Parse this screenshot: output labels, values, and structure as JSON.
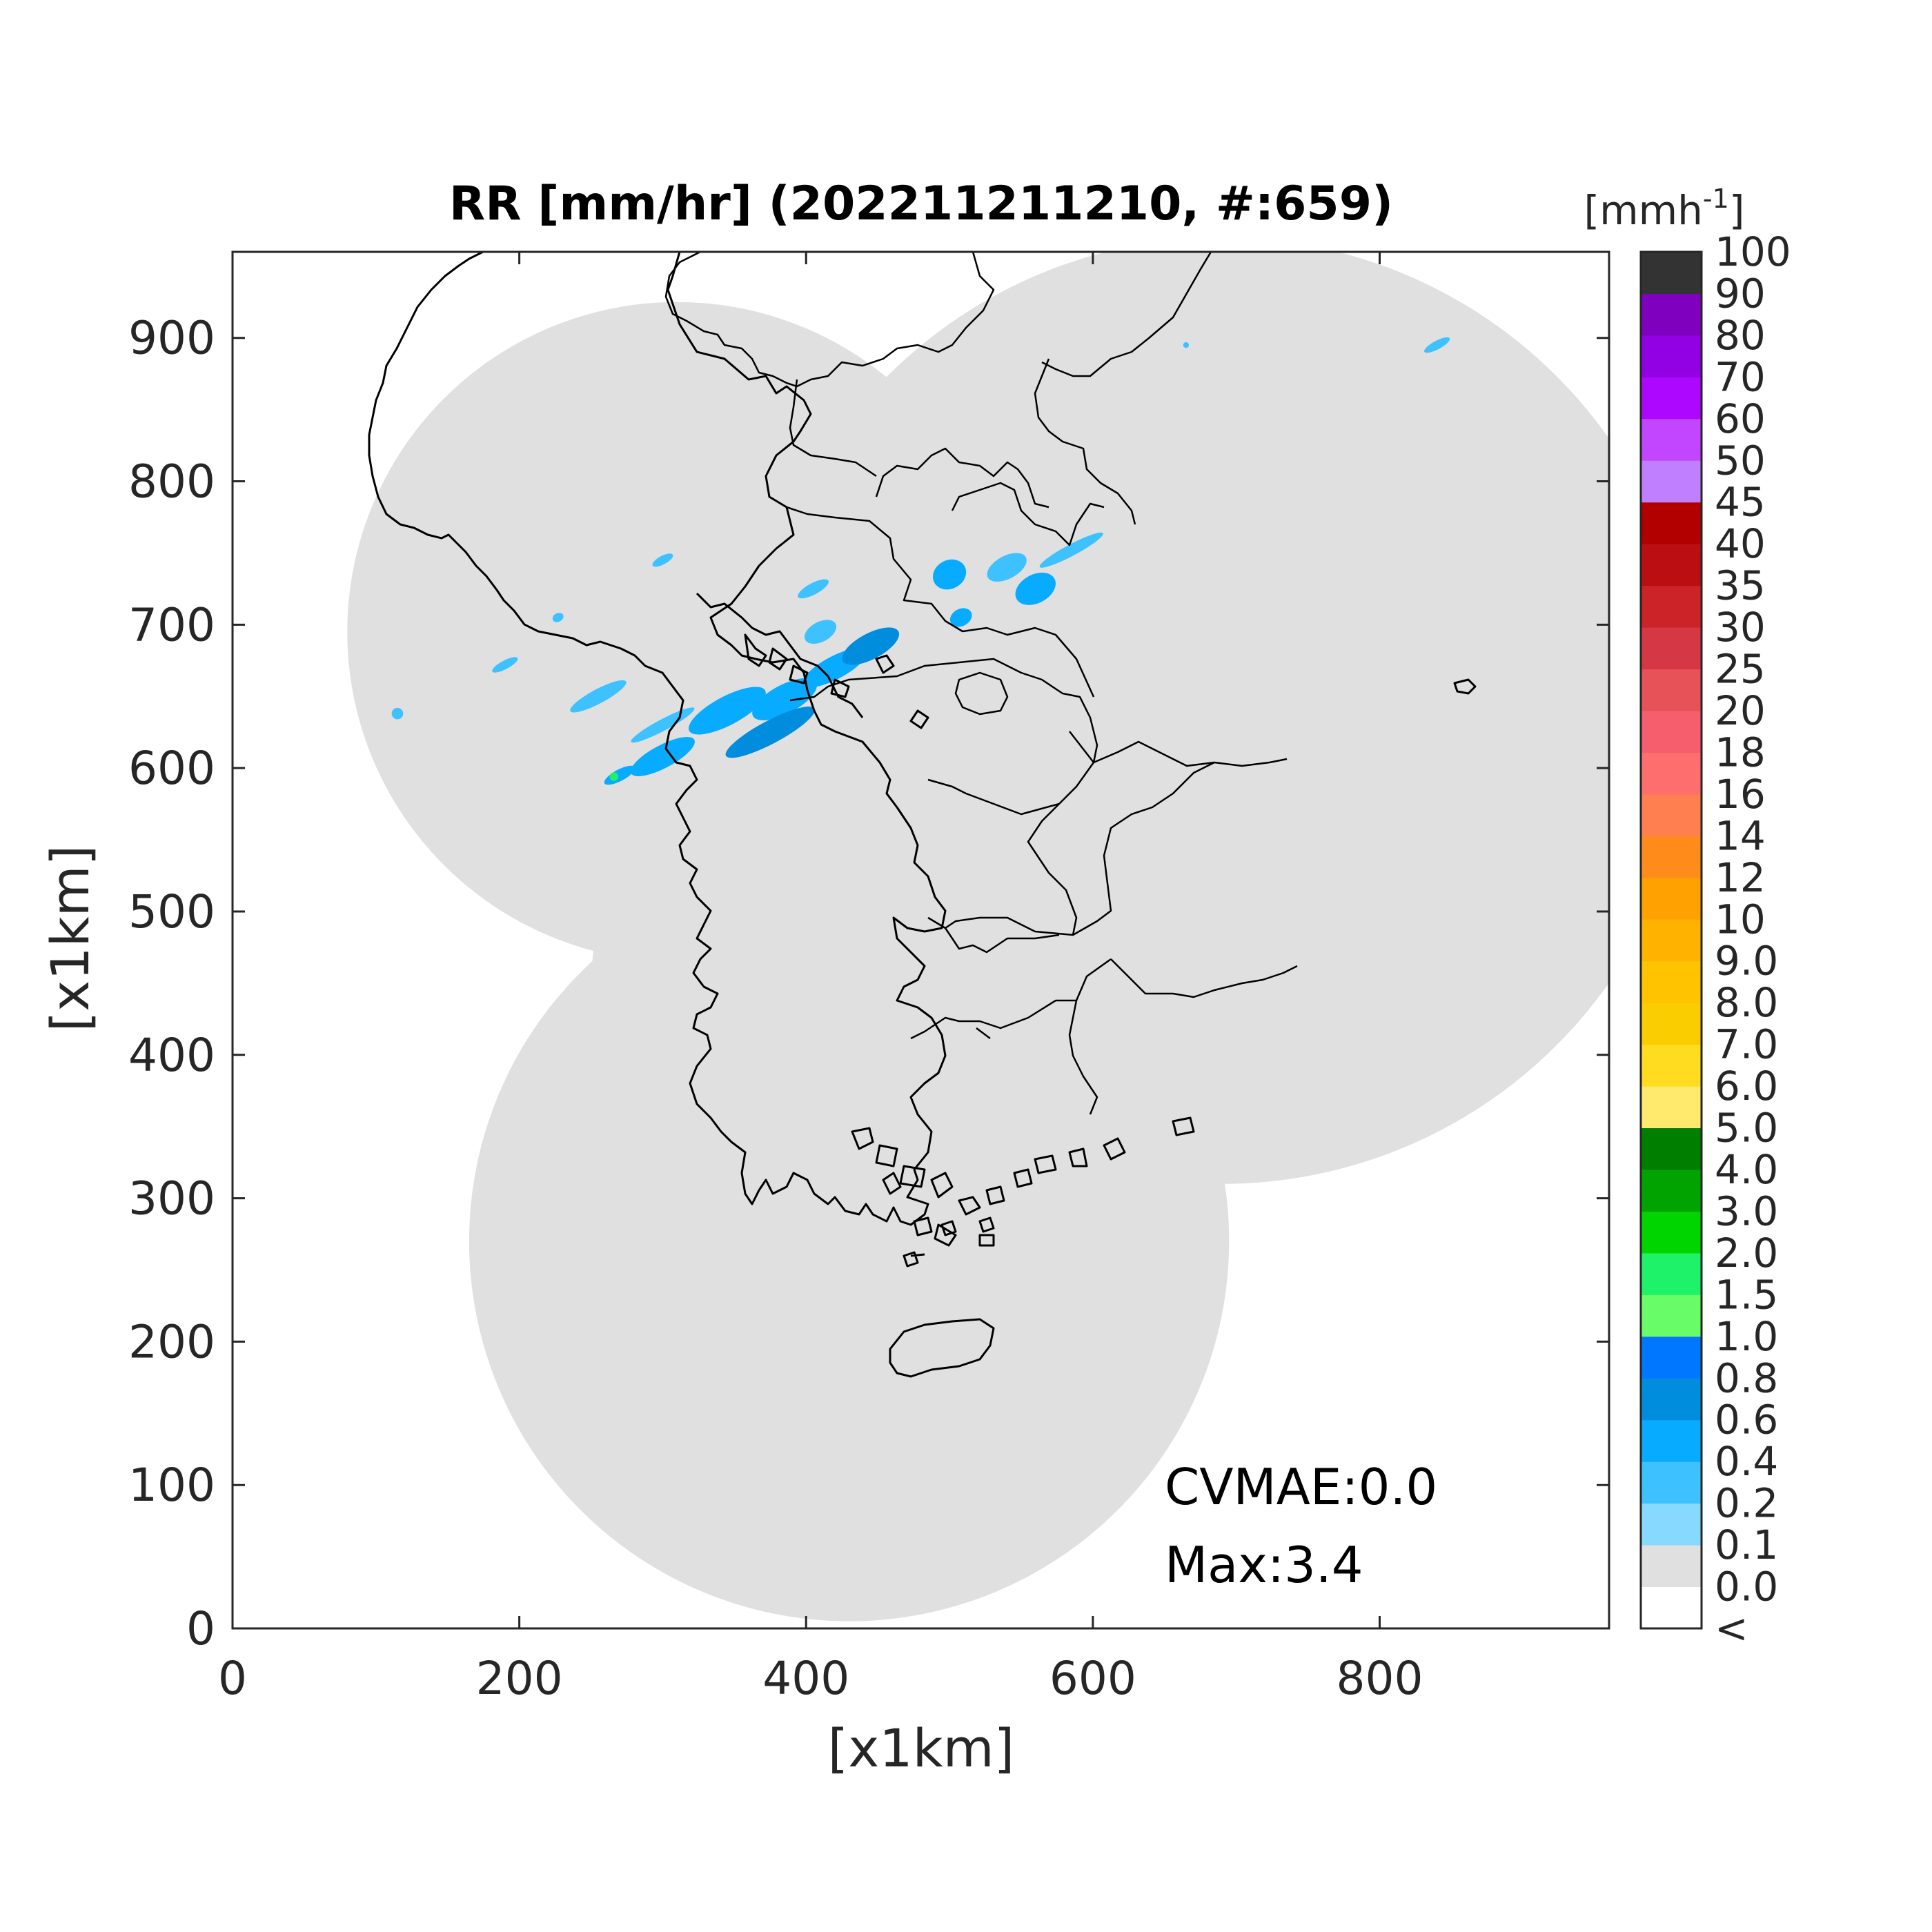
{
  "title": "RR [mm/hr] (202211211210, #:659)",
  "xlabel": "[x1km]",
  "ylabel": "[x1km]",
  "x_ticks": [
    "0",
    "200",
    "400",
    "600",
    "800"
  ],
  "y_ticks": [
    "0",
    "100",
    "200",
    "300",
    "400",
    "500",
    "600",
    "700",
    "800",
    "900"
  ],
  "colorbar": {
    "unit_base": "[mmh",
    "unit_exp": "-1",
    "unit_close": "]",
    "labels": [
      "<",
      "0.0",
      "0.1",
      "0.2",
      "0.4",
      "0.6",
      "0.8",
      "1.0",
      "1.5",
      "2.0",
      "3.0",
      "4.0",
      "5.0",
      "6.0",
      "7.0",
      "8.0",
      "9.0",
      "10",
      "12",
      "14",
      "16",
      "18",
      "20",
      "25",
      "30",
      "35",
      "40",
      "45",
      "50",
      "60",
      "70",
      "80",
      "90",
      "100"
    ],
    "colors": [
      "#ffffff",
      "#e0e0e0",
      "#87d9ff",
      "#3ec1ff",
      "#07abff",
      "#008dde",
      "#0077ff",
      "#69fc69",
      "#1ef269",
      "#00d500",
      "#00a300",
      "#007e00",
      "#ffea6e",
      "#ffdc1f",
      "#f9cd00",
      "#ffc300",
      "#ffb300",
      "#ffa100",
      "#ff8c1a",
      "#ff7f50",
      "#ff6e6e",
      "#f65e6e",
      "#e75158",
      "#d63744",
      "#cb2328",
      "#bb0e13",
      "#b20000",
      "#c07fff",
      "#c246ff",
      "#ad07ff",
      "#9200e4",
      "#7f00bf",
      "#333333"
    ]
  },
  "annotations": {
    "cvmae": "CVMAE:0.0",
    "max": "Max:3.4"
  },
  "chart_data": {
    "type": "map",
    "xlim": [
      0,
      960
    ],
    "ylim": [
      0,
      960
    ],
    "xlabel": "[x1km]",
    "ylabel": "[x1km]",
    "title": "RR [mm/hr] (202211211210, #:659)",
    "colorbar_unit": "[mmh-1]",
    "colorbar_levels": [
      "<",
      "0.0",
      "0.1",
      "0.2",
      "0.4",
      "0.6",
      "0.8",
      "1.0",
      "1.5",
      "2.0",
      "3.0",
      "4.0",
      "5.0",
      "6.0",
      "7.0",
      "8.0",
      "9.0",
      "10",
      "12",
      "14",
      "16",
      "18",
      "20",
      "25",
      "30",
      "35",
      "40",
      "45",
      "50",
      "60",
      "70",
      "80",
      "90",
      "100"
    ],
    "max_value": 3.4,
    "cvmae": 0.0,
    "radar_coverage_circles": [
      {
        "cx": 310,
        "cy": 695,
        "r": 230
      },
      {
        "cx": 690,
        "cy": 640,
        "r": 330
      },
      {
        "cx": 430,
        "cy": 270,
        "r": 265
      },
      {
        "cx": 480,
        "cy": 445,
        "r": 230
      }
    ],
    "precipitation_cells": [
      {
        "x": 255,
        "y": 650,
        "rx": 22,
        "ry": 5,
        "level": "0.2"
      },
      {
        "x": 300,
        "y": 630,
        "rx": 25,
        "ry": 4,
        "level": "0.2"
      },
      {
        "x": 345,
        "y": 640,
        "rx": 30,
        "ry": 10,
        "level": "0.4"
      },
      {
        "x": 385,
        "y": 648,
        "rx": 25,
        "ry": 10,
        "level": "0.4"
      },
      {
        "x": 375,
        "y": 625,
        "rx": 35,
        "ry": 8,
        "level": "0.6"
      },
      {
        "x": 420,
        "y": 670,
        "rx": 25,
        "ry": 8,
        "level": "0.4"
      },
      {
        "x": 445,
        "y": 685,
        "rx": 22,
        "ry": 9,
        "level": "0.6"
      },
      {
        "x": 410,
        "y": 695,
        "rx": 12,
        "ry": 7,
        "level": "0.2"
      },
      {
        "x": 405,
        "y": 725,
        "rx": 12,
        "ry": 4,
        "level": "0.2"
      },
      {
        "x": 500,
        "y": 735,
        "rx": 12,
        "ry": 10,
        "level": "0.4"
      },
      {
        "x": 540,
        "y": 740,
        "rx": 15,
        "ry": 8,
        "level": "0.2"
      },
      {
        "x": 560,
        "y": 725,
        "rx": 15,
        "ry": 10,
        "level": "0.4"
      },
      {
        "x": 585,
        "y": 752,
        "rx": 25,
        "ry": 4,
        "level": "0.2"
      },
      {
        "x": 508,
        "y": 705,
        "rx": 8,
        "ry": 6,
        "level": "0.4"
      },
      {
        "x": 300,
        "y": 608,
        "rx": 25,
        "ry": 8,
        "level": "0.4"
      },
      {
        "x": 270,
        "y": 595,
        "rx": 12,
        "ry": 4,
        "level": "0.4"
      },
      {
        "x": 266,
        "y": 594,
        "rx": 3,
        "ry": 3,
        "level": "1.5"
      },
      {
        "x": 190,
        "y": 672,
        "rx": 10,
        "ry": 3,
        "level": "0.2"
      },
      {
        "x": 115,
        "y": 638,
        "rx": 4,
        "ry": 4,
        "level": "0.2"
      },
      {
        "x": 300,
        "y": 745,
        "rx": 8,
        "ry": 3,
        "level": "0.2"
      },
      {
        "x": 227,
        "y": 705,
        "rx": 4,
        "ry": 3,
        "level": "0.2"
      },
      {
        "x": 840,
        "y": 895,
        "rx": 10,
        "ry": 3,
        "level": "0.2"
      },
      {
        "x": 665,
        "y": 895,
        "rx": 2,
        "ry": 2,
        "level": "0.2"
      }
    ]
  }
}
